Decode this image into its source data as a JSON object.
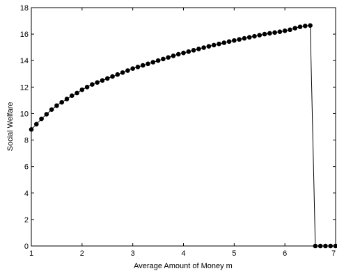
{
  "chart_data": {
    "type": "line",
    "title": "",
    "xlabel": "Average Amount of Money m",
    "ylabel": "Social Welfare",
    "xlim": [
      1,
      7
    ],
    "ylim": [
      0,
      18
    ],
    "xticks": [
      "1",
      "2",
      "3",
      "4",
      "5",
      "6",
      "7"
    ],
    "yticks": [
      "0",
      "2",
      "4",
      "6",
      "8",
      "10",
      "12",
      "14",
      "16",
      "18"
    ],
    "grid": false,
    "legend": "none",
    "series": [
      {
        "marker": "filled-circle",
        "color": "#000000",
        "x": [
          1.0,
          1.1,
          1.2,
          1.3,
          1.4,
          1.5,
          1.6,
          1.7,
          1.8,
          1.9,
          2.0,
          2.1,
          2.2,
          2.3,
          2.4,
          2.5,
          2.6,
          2.7,
          2.8,
          2.9,
          3.0,
          3.1,
          3.2,
          3.3,
          3.4,
          3.5,
          3.6,
          3.7,
          3.8,
          3.9,
          4.0,
          4.1,
          4.2,
          4.3,
          4.4,
          4.5,
          4.6,
          4.7,
          4.8,
          4.9,
          5.0,
          5.1,
          5.2,
          5.3,
          5.4,
          5.5,
          5.6,
          5.7,
          5.8,
          5.9,
          6.0,
          6.1,
          6.2,
          6.3,
          6.4,
          6.5,
          6.6,
          6.7,
          6.8,
          6.9,
          7.0
        ],
        "y": [
          8.8,
          9.2,
          9.6,
          9.95,
          10.3,
          10.6,
          10.85,
          11.1,
          11.35,
          11.55,
          11.8,
          12.0,
          12.2,
          12.35,
          12.5,
          12.65,
          12.8,
          12.95,
          13.1,
          13.25,
          13.4,
          13.52,
          13.64,
          13.76,
          13.88,
          14.0,
          14.12,
          14.24,
          14.36,
          14.48,
          14.58,
          14.68,
          14.78,
          14.88,
          14.98,
          15.08,
          15.17,
          15.26,
          15.35,
          15.44,
          15.52,
          15.6,
          15.68,
          15.76,
          15.84,
          15.92,
          16.0,
          16.06,
          16.12,
          16.18,
          16.25,
          16.33,
          16.45,
          16.55,
          16.62,
          16.65,
          0,
          0,
          0,
          0,
          0
        ]
      }
    ]
  }
}
